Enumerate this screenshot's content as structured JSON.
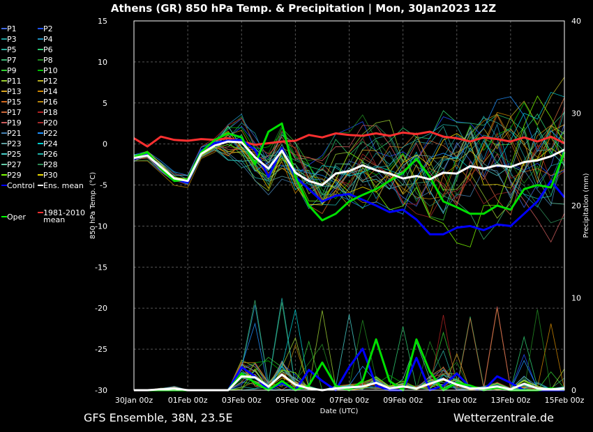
{
  "title": "Athens  (GR)  850 hPa Temp. & Precipitation | Mon, 30Jan2023 12Z",
  "footer_left": "GFS Ensemble, 38N, 23.5E",
  "footer_right": "Wetterzentrale.de",
  "chart_data": {
    "type": "line",
    "title": "Athens  (GR)  850 hPa Temp. & Precipitation | Mon, 30Jan2023 12Z",
    "xlabel": "Date (UTC)",
    "ylabel": "850 hPa Temp. (°C)",
    "y2label": "Precipitation (mm)",
    "xlim": [
      0,
      16
    ],
    "ylim": [
      -30,
      15
    ],
    "y2lim": [
      0,
      40
    ],
    "x_ticks": [
      0,
      2,
      4,
      6,
      8,
      10,
      12,
      14,
      16
    ],
    "x_tick_labels": [
      "30Jan 00z",
      "01Feb 00z",
      "03Feb 00z",
      "05Feb 00z",
      "07Feb 00z",
      "09Feb 00z",
      "11Feb 00z",
      "13Feb 00z",
      "15Feb 00z"
    ],
    "y_ticks": [
      15,
      10,
      5,
      0,
      -5,
      -10,
      -15,
      -20,
      -25,
      -30
    ],
    "y_tick_labels": [
      "15",
      "10",
      "5",
      "0",
      "-5",
      "-10",
      "-15",
      "-20",
      "-25",
      "-30"
    ],
    "y2_ticks": [
      40,
      30,
      20,
      10,
      0
    ],
    "y2_tick_labels": [
      "40",
      "30",
      "20",
      "10",
      "0"
    ],
    "grid": true,
    "legend_position": "left",
    "legend": [
      {
        "label": "P1",
        "color": "#4169e1"
      },
      {
        "label": "P2",
        "color": "#1e50ff"
      },
      {
        "label": "P3",
        "color": "#20a0a0"
      },
      {
        "label": "P4",
        "color": "#1e90c0"
      },
      {
        "label": "P5",
        "color": "#2ab0a0"
      },
      {
        "label": "P6",
        "color": "#2ecc71"
      },
      {
        "label": "P7",
        "color": "#3cb371"
      },
      {
        "label": "P8",
        "color": "#228b22"
      },
      {
        "label": "P9",
        "color": "#32cd32"
      },
      {
        "label": "P10",
        "color": "#00c000"
      },
      {
        "label": "P11",
        "color": "#9acd32"
      },
      {
        "label": "P12",
        "color": "#b8b020"
      },
      {
        "label": "P13",
        "color": "#daa520"
      },
      {
        "label": "P14",
        "color": "#cd8500"
      },
      {
        "label": "P15",
        "color": "#d2691e"
      },
      {
        "label": "P16",
        "color": "#b8860b"
      },
      {
        "label": "P17",
        "color": "#cd6839"
      },
      {
        "label": "P18",
        "color": "#b22222"
      },
      {
        "label": "P19",
        "color": "#cd5c5c"
      },
      {
        "label": "P20",
        "color": "#a52a2a"
      },
      {
        "label": "P21",
        "color": "#4682b4"
      },
      {
        "label": "P22",
        "color": "#1e90ff"
      },
      {
        "label": "P23",
        "color": "#5f9ea0"
      },
      {
        "label": "P24",
        "color": "#00ced1"
      },
      {
        "label": "P25",
        "color": "#48d1cc"
      },
      {
        "label": "P26",
        "color": "#20b2aa"
      },
      {
        "label": "P27",
        "color": "#66cdaa"
      },
      {
        "label": "P28",
        "color": "#2e8b57"
      },
      {
        "label": "P29",
        "color": "#7cfc00"
      },
      {
        "label": "P30",
        "color": "#eedd00"
      },
      {
        "label": "Control",
        "color": "#0000ff"
      },
      {
        "label": "Ens. mean",
        "color": "#ffffff"
      },
      {
        "label": "1981-2010\nmean",
        "color": "#ff3030"
      },
      {
        "label": "Oper",
        "color": "#00ff00"
      }
    ],
    "series": [
      {
        "name": "Ens. mean",
        "color": "#ffffff",
        "axis": "temp",
        "x": [
          0,
          0.5,
          1,
          1.5,
          2,
          2.5,
          3,
          3.5,
          4,
          4.5,
          5,
          5.5,
          6,
          6.5,
          7,
          7.5,
          8,
          8.5,
          9,
          9.5,
          10,
          10.5,
          11,
          11.5,
          12,
          12.5,
          13,
          13.5,
          14,
          14.5,
          15,
          15.5,
          16
        ],
        "values": [
          -1.7,
          -1.4,
          -2.8,
          -4.2,
          -4.5,
          -1.2,
          -0.2,
          0.3,
          0.2,
          -1.6,
          -3,
          -0.8,
          -3.5,
          -4.5,
          -5,
          -3.6,
          -3.3,
          -2.6,
          -3.2,
          -3.6,
          -4.2,
          -3.9,
          -4.3,
          -3.5,
          -3.6,
          -2.7,
          -3,
          -2.6,
          -2.8,
          -2.2,
          -2,
          -1.5,
          -0.7
        ]
      },
      {
        "name": "1981-2010 mean",
        "color": "#ff3030",
        "axis": "temp",
        "x": [
          0,
          0.5,
          1,
          1.5,
          2,
          2.5,
          3,
          3.5,
          4,
          4.5,
          5,
          5.5,
          6,
          6.5,
          7,
          7.5,
          8,
          8.5,
          9,
          9.5,
          10,
          10.5,
          11,
          11.5,
          12,
          12.5,
          13,
          13.5,
          14,
          14.5,
          15,
          15.5,
          16
        ],
        "values": [
          0.7,
          -0.3,
          0.9,
          0.5,
          0.4,
          0.6,
          0.5,
          0.7,
          0.3,
          -0.1,
          0.1,
          0.3,
          0.4,
          1.1,
          0.8,
          1.3,
          1.1,
          1.0,
          1.3,
          1.0,
          1.4,
          1.2,
          1.5,
          0.9,
          0.7,
          0.3,
          0.8,
          0.6,
          0.3,
          0.8,
          0.3,
          0.9,
          0.1
        ]
      },
      {
        "name": "Control",
        "color": "#0000ff",
        "axis": "temp",
        "x": [
          0,
          0.5,
          1,
          1.5,
          2,
          2.5,
          3,
          3.5,
          4,
          4.5,
          5,
          5.5,
          6,
          6.5,
          7,
          7.5,
          8,
          8.5,
          9,
          9.5,
          10,
          10.5,
          11,
          11.5,
          12,
          12.5,
          13,
          13.5,
          14,
          14.5,
          15,
          15.5,
          16
        ],
        "values": [
          -1.8,
          -1.3,
          -3,
          -4.3,
          -4.7,
          -0.8,
          0.1,
          0.4,
          0.5,
          -0.7,
          -4,
          -0.5,
          -4,
          -5.5,
          -7,
          -6.3,
          -6.1,
          -6.8,
          -7.5,
          -8.3,
          -8,
          -9.2,
          -11,
          -11,
          -10.2,
          -10,
          -10.5,
          -9.8,
          -10,
          -8.5,
          -7,
          -4.5,
          -6.5
        ]
      },
      {
        "name": "Oper",
        "color": "#00e000",
        "axis": "temp",
        "x": [
          0,
          0.5,
          1,
          1.5,
          2,
          2.5,
          3,
          3.5,
          4,
          4.5,
          5,
          5.5,
          6,
          6.5,
          7,
          7.5,
          8,
          8.5,
          9,
          9.5,
          10,
          10.5,
          11,
          11.5,
          12,
          12.5,
          13,
          13.5,
          14,
          14.5,
          15,
          15.5,
          16
        ],
        "values": [
          -1.6,
          -1,
          -3,
          -4.5,
          -4.3,
          -1,
          0.5,
          1.3,
          0.8,
          -2.5,
          1.5,
          2.5,
          -4,
          -7.5,
          -9.3,
          -8.5,
          -7,
          -6.2,
          -5.5,
          -4.5,
          -3.5,
          -1.8,
          -4,
          -7,
          -7.7,
          -8.5,
          -8.5,
          -7.5,
          -8,
          -5.5,
          -5,
          -5.3,
          -1
        ]
      },
      {
        "name": "Ens. mean precip",
        "color": "#ffffff",
        "axis": "precip",
        "x": [
          0,
          0.5,
          1,
          1.5,
          2,
          2.5,
          3,
          3.5,
          4,
          4.5,
          5,
          5.5,
          6,
          6.5,
          7,
          7.5,
          8,
          8.5,
          9,
          9.5,
          10,
          10.5,
          11,
          11.5,
          12,
          12.5,
          13,
          13.5,
          14,
          14.5,
          15,
          15.5,
          16
        ],
        "values": [
          0,
          0,
          0.1,
          0.2,
          0,
          0,
          0,
          0,
          1.5,
          1.4,
          0.4,
          1.7,
          0.6,
          0.2,
          0,
          0.2,
          0.3,
          0.4,
          0.8,
          0.2,
          0.4,
          0.2,
          0.7,
          1.2,
          0.6,
          0.2,
          0.2,
          0.4,
          0.1,
          0.7,
          0.2,
          0.1,
          0.2
        ]
      },
      {
        "name": "Control precip",
        "color": "#0000ff",
        "axis": "precip",
        "x": [
          0,
          0.5,
          1,
          1.5,
          2,
          2.5,
          3,
          3.5,
          4,
          4.5,
          5,
          5.5,
          6,
          6.5,
          7,
          7.5,
          8,
          8.5,
          9,
          9.5,
          10,
          10.5,
          11,
          11.5,
          12,
          12.5,
          13,
          13.5,
          14,
          14.5,
          15,
          15.5,
          16
        ],
        "values": [
          0,
          0,
          0,
          0,
          0,
          0,
          0,
          0,
          2.5,
          1.5,
          0,
          0.8,
          0,
          2.2,
          1,
          0,
          2.5,
          4.5,
          0.5,
          0,
          0,
          3.5,
          0,
          0.5,
          1.8,
          0.3,
          0,
          1.5,
          0.8,
          0,
          0,
          0,
          0
        ]
      },
      {
        "name": "Oper precip",
        "color": "#00e000",
        "axis": "precip",
        "x": [
          0,
          0.5,
          1,
          1.5,
          2,
          2.5,
          3,
          3.5,
          4,
          4.5,
          5,
          5.5,
          6,
          6.5,
          7,
          7.5,
          8,
          8.5,
          9,
          9.5,
          10,
          10.5,
          11,
          11.5,
          12,
          12.5,
          13,
          13.5,
          14,
          14.5,
          15,
          15.5,
          16
        ],
        "values": [
          0,
          0,
          0,
          0,
          0,
          0,
          0,
          0,
          1.8,
          0.8,
          0,
          1,
          0,
          0.5,
          3,
          0.5,
          0,
          1,
          5.5,
          1,
          0,
          5.5,
          2,
          0,
          0.8,
          0.5,
          0,
          0.3,
          0,
          0,
          0,
          0.2,
          0.1
        ]
      }
    ]
  }
}
